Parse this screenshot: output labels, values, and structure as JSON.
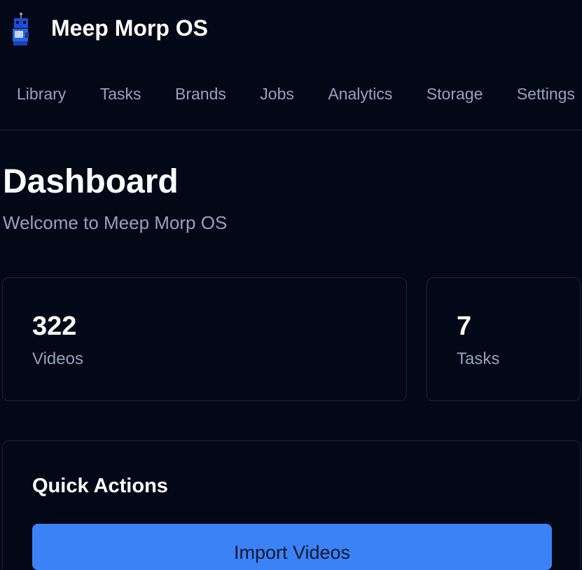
{
  "header": {
    "title": "Meep Morp OS"
  },
  "nav": [
    "Library",
    "Tasks",
    "Brands",
    "Jobs",
    "Analytics",
    "Storage",
    "Settings"
  ],
  "page": {
    "title": "Dashboard",
    "subtitle": "Welcome to Meep Morp OS"
  },
  "stats": [
    {
      "value": "322",
      "label": "Videos"
    },
    {
      "value": "7",
      "label": "Tasks"
    }
  ],
  "quick_actions": {
    "title": "Quick Actions",
    "import_label": "Import Videos"
  },
  "colors": {
    "background": "#030817",
    "accent": "#3b82f6"
  }
}
